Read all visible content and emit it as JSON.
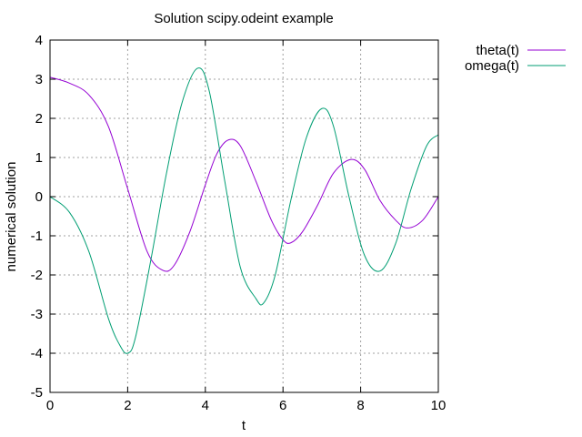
{
  "chart_data": {
    "type": "line",
    "title": "Solution scipy.odeint example",
    "xlabel": "t",
    "ylabel": "numerical solution",
    "xlim": [
      0,
      10
    ],
    "ylim": [
      -5,
      4
    ],
    "grid": true,
    "legend_position": "outside-top-right",
    "xticks": [
      "0",
      "2",
      "4",
      "6",
      "8",
      "10"
    ],
    "yticks": [
      "-5",
      "-4",
      "-3",
      "-2",
      "-1",
      "0",
      "1",
      "2",
      "3",
      "4"
    ],
    "series": [
      {
        "name": "theta(t)",
        "color": "#9400d3",
        "x": [
          0,
          0.5,
          1.0,
          1.5,
          2.0,
          2.5,
          2.9,
          3.2,
          3.6,
          4.0,
          4.3,
          4.6,
          4.9,
          5.3,
          5.7,
          6.0,
          6.2,
          6.5,
          6.9,
          7.3,
          7.75,
          8.1,
          8.5,
          8.9,
          9.2,
          9.6,
          10.0
        ],
        "y": [
          3.05,
          2.9,
          2.6,
          1.8,
          0.2,
          -1.4,
          -1.88,
          -1.75,
          -0.9,
          0.3,
          1.1,
          1.45,
          1.3,
          0.4,
          -0.6,
          -1.1,
          -1.18,
          -0.9,
          -0.2,
          0.6,
          0.95,
          0.7,
          -0.1,
          -0.6,
          -0.8,
          -0.6,
          0.0
        ]
      },
      {
        "name": "omega(t)",
        "color": "#009e73",
        "x": [
          0,
          0.5,
          1.0,
          1.5,
          1.8,
          2.0,
          2.2,
          2.6,
          3.0,
          3.4,
          3.8,
          4.1,
          4.5,
          4.9,
          5.3,
          5.5,
          5.8,
          6.2,
          6.6,
          7.0,
          7.3,
          7.7,
          8.1,
          8.5,
          8.9,
          9.3,
          9.7,
          10.0
        ],
        "y": [
          0.0,
          -0.4,
          -1.4,
          -3.1,
          -3.8,
          -4.0,
          -3.6,
          -1.6,
          0.6,
          2.4,
          3.28,
          2.7,
          0.4,
          -1.8,
          -2.6,
          -2.72,
          -2.0,
          -0.1,
          1.5,
          2.25,
          1.8,
          0.0,
          -1.5,
          -1.9,
          -1.2,
          0.2,
          1.3,
          1.58
        ]
      }
    ]
  }
}
